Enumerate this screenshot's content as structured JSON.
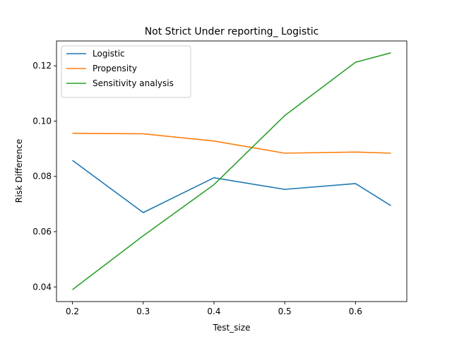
{
  "chart_data": {
    "type": "line",
    "title": "Not Strict Under reporting_ Logistic",
    "xlabel": "Test_size",
    "ylabel": "Risk Difference",
    "x": [
      0.2,
      0.3,
      0.4,
      0.5,
      0.6,
      0.65
    ],
    "xlim": [
      0.1775,
      0.6725
    ],
    "ylim": [
      0.0347,
      0.129
    ],
    "xticks": [
      0.2,
      0.3,
      0.4,
      0.5,
      0.6
    ],
    "xtick_labels": [
      "0.2",
      "0.3",
      "0.4",
      "0.5",
      "0.6"
    ],
    "yticks": [
      0.04,
      0.06,
      0.08,
      0.1,
      0.12
    ],
    "ytick_labels": [
      "0.04",
      "0.06",
      "0.08",
      "0.10",
      "0.12"
    ],
    "grid": false,
    "legend_position": "upper-left",
    "series": [
      {
        "name": "Logistic",
        "color": "#1f77b4",
        "values": [
          0.0858,
          0.0669,
          0.0795,
          0.0753,
          0.0774,
          0.0694
        ]
      },
      {
        "name": "Propensity",
        "color": "#ff7f0e",
        "values": [
          0.0956,
          0.0954,
          0.0928,
          0.0884,
          0.0888,
          0.0884
        ]
      },
      {
        "name": "Sensitivity analysis",
        "color": "#2ca02c",
        "values": [
          0.039,
          0.0585,
          0.077,
          0.102,
          0.1213,
          0.1247
        ]
      }
    ]
  }
}
